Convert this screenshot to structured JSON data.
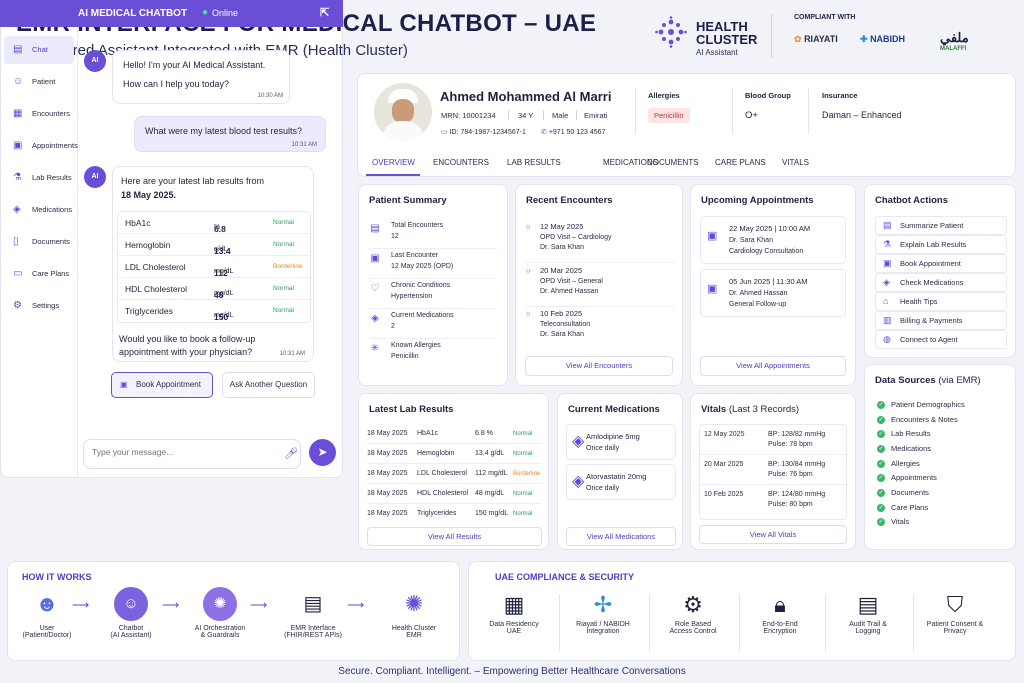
{
  "header": {
    "title": "EMR INTERFACE FOR MEDICAL CHATBOT – UAE",
    "subtitle": "AI-Powered Assistant Integrated with EMR (Health Cluster)",
    "brand": {
      "name": "HEALTH CLUSTER",
      "tagline": "AI Assistant"
    },
    "compliant_label": "COMPLIANT WITH",
    "partners": [
      "RIAYATI",
      "NABIDH",
      "MALAFFI"
    ],
    "partner_extra": {
      "malaffi_arabic": "ملفي"
    }
  },
  "chat": {
    "title": "AI MEDICAL CHATBOT",
    "status": "Online",
    "nav": [
      "Chat",
      "Patient",
      "Encounters",
      "Appointments",
      "Lab Results",
      "Medications",
      "Documents",
      "Care Plans",
      "Settings"
    ],
    "avatar_text": "AI",
    "messages": {
      "m1_line1": "Hello! I'm your AI Medical Assistant.",
      "m1_line2": "How can I help you today?",
      "m1_time": "10:30 AM",
      "m2": "What were my latest blood test results?",
      "m2_time": "10:31 AM",
      "m3_line1": "Here are your latest lab results from",
      "m3_date": "18 May 2025.",
      "m3_q1": "Would you like to book a follow-up",
      "m3_q2": "appointment with your physician?",
      "m3_time": "10:31 AM"
    },
    "labs": [
      {
        "test": "HbA1c",
        "value": "6.8",
        "unit": "%",
        "status": "Normal"
      },
      {
        "test": "Hemoglobin",
        "value": "13.4",
        "unit": "g/dL",
        "status": "Normal"
      },
      {
        "test": "LDL Cholesterol",
        "value": "112",
        "unit": "mg/dL",
        "status": "Borderline"
      },
      {
        "test": "HDL Cholesterol",
        "value": "48",
        "unit": "mg/dL",
        "status": "Normal"
      },
      {
        "test": "Triglycerides",
        "value": "150",
        "unit": "mg/dL",
        "status": "Normal"
      }
    ],
    "book_label": "Book Appointment",
    "ask_label": "Ask Another Question",
    "input_placeholder": "Type your message..."
  },
  "patient": {
    "name": "Ahmed Mohammed Al Marri",
    "mrn": "MRN: 10001234",
    "age": "34 Y",
    "gender": "Male",
    "nationality": "Emirati",
    "id": "ID: 784-1987-1234567-1",
    "phone": "+971 50 123 4567",
    "allergies_label": "Allergies",
    "allergy": "Penicillin",
    "blood_label": "Blood Group",
    "blood": "O+",
    "insurance_label": "Insurance",
    "insurance": "Daman – Enhanced",
    "tabs": [
      "OVERVIEW",
      "ENCOUNTERS",
      "LAB RESULTS",
      "MEDICATIONS",
      "DOCUMENTS",
      "CARE PLANS",
      "VITALS"
    ]
  },
  "summary": {
    "title": "Patient Summary",
    "items": [
      {
        "label": "Total Encounters",
        "value": "12"
      },
      {
        "label": "Last Encounter",
        "value": "12 May 2025 (OPD)"
      },
      {
        "label": "Chronic Conditions",
        "value": "Hypertension"
      },
      {
        "label": "Current Medications",
        "value": "2"
      },
      {
        "label": "Known Allergies",
        "value": "Penicillin"
      }
    ]
  },
  "encounters": {
    "title": "Recent Encounters",
    "items": [
      {
        "date": "12 May 2025",
        "type": "OPD Visit – Cardiology",
        "doctor": "Dr. Sara Khan"
      },
      {
        "date": "20 Mar 2025",
        "type": "OPD Visit – General",
        "doctor": "Dr. Ahmed Hassan"
      },
      {
        "date": "10 Feb 2025",
        "type": "Teleconsultation",
        "doctor": "Dr. Sara Khan"
      }
    ],
    "view_all": "View All Encounters"
  },
  "appointments": {
    "title": "Upcoming Appointments",
    "items": [
      {
        "when": "22 May 2025 | 10:00 AM",
        "doctor": "Dr. Sara Khan",
        "type": "Cardiology Consultation"
      },
      {
        "when": "05 Jun 2025 | 11:30 AM",
        "doctor": "Dr. Ahmed Hassan",
        "type": "General Follow-up"
      }
    ],
    "view_all": "View All Appointments"
  },
  "actions": {
    "title": "Chatbot Actions",
    "items": [
      "Summarize Patient",
      "Explain Lab Results",
      "Book Appointment",
      "Check Medications",
      "Health Tips",
      "Billing & Payments",
      "Connect to Agent"
    ]
  },
  "sources": {
    "title": "Data Sources",
    "title_suffix": "(via EMR)",
    "items": [
      "Patient Demographics",
      "Encounters & Notes",
      "Lab Results",
      "Medications",
      "Allergies",
      "Appointments",
      "Documents",
      "Care Plans",
      "Vitals"
    ]
  },
  "lab_results": {
    "title": "Latest Lab Results",
    "rows": [
      {
        "date": "18 May 2025",
        "test": "HbA1c",
        "value": "6.8",
        "unit": "%",
        "status": "Normal"
      },
      {
        "date": "18 May 2025",
        "test": "Hemoglobin",
        "value": "13.4",
        "unit": "g/dL",
        "status": "Normal"
      },
      {
        "date": "18 May 2025",
        "test": "LDL Cholesterol",
        "value": "112",
        "unit": "mg/dL",
        "status": "Borderline"
      },
      {
        "date": "18 May 2025",
        "test": "HDL Cholesterol",
        "value": "48",
        "unit": "mg/dL",
        "status": "Normal"
      },
      {
        "date": "18 May 2025",
        "test": "Triglycerides",
        "value": "150",
        "unit": "mg/dL",
        "status": "Normal"
      }
    ],
    "view_all": "View All Results"
  },
  "medications": {
    "title": "Current Medications",
    "items": [
      {
        "name": "Amlodipine 5mg",
        "freq": "Once daily"
      },
      {
        "name": "Atorvastatin 20mg",
        "freq": "Once daily"
      }
    ],
    "view_all": "View All Medications"
  },
  "vitals": {
    "title": "Vitals",
    "title_suffix": "(Last 3 Records)",
    "rows": [
      {
        "date": "12 May 2025",
        "bp": "BP:  128/82 mmHg",
        "pulse": "Pulse: 78 bpm"
      },
      {
        "date": "20 Mar 2025",
        "bp": "BP:  130/84 mmHg",
        "pulse": "Pulse: 76 bpm"
      },
      {
        "date": "10 Feb 2025",
        "bp": "BP:  124/80 mmHg",
        "pulse": "Pulse: 80 bpm"
      }
    ],
    "view_all": "View All Vitals"
  },
  "how": {
    "title": "HOW IT WORKS",
    "steps": [
      {
        "l1": "User",
        "l2": "(Patient/Doctor)"
      },
      {
        "l1": "Chatbot",
        "l2": "(AI Assistant)"
      },
      {
        "l1": "AI Orchestration",
        "l2": "& Guardrails"
      },
      {
        "l1": "EMR Interface",
        "l2": "(FHIR/REST APIs)"
      },
      {
        "l1": "Health Cluster",
        "l2": "EMR"
      }
    ]
  },
  "compliance": {
    "title": "UAE COMPLIANCE & SECURITY",
    "items": [
      {
        "l1": "Data Residency",
        "l2": "UAE"
      },
      {
        "l1": "Riayati / NABIDH",
        "l2": "Integration"
      },
      {
        "l1": "Role Based",
        "l2": "Access Control"
      },
      {
        "l1": "End-to-End",
        "l2": "Encryption"
      },
      {
        "l1": "Audit Trail &",
        "l2": "Logging"
      },
      {
        "l1": "Patient Consent &",
        "l2": "Privacy"
      }
    ]
  },
  "footer": "Secure. Compliant. Intelligent. – Empowering Better Healthcare Conversations",
  "colors": {
    "accent": "#6a4fd6",
    "normal": "#2f9e55",
    "borderline": "#e8871e"
  }
}
